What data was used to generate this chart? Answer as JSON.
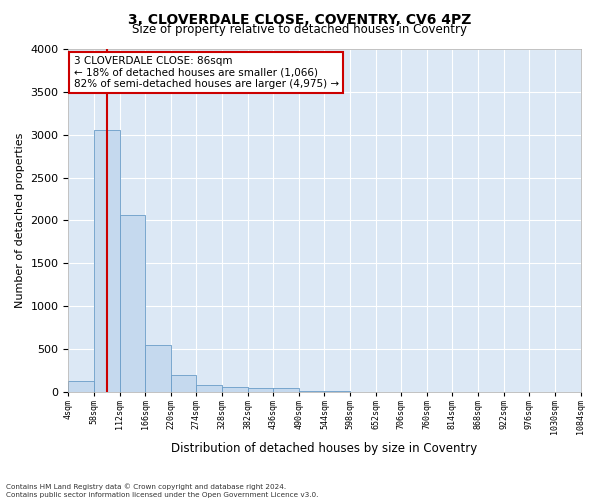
{
  "title": "3, CLOVERDALE CLOSE, COVENTRY, CV6 4PZ",
  "subtitle": "Size of property relative to detached houses in Coventry",
  "xlabel": "Distribution of detached houses by size in Coventry",
  "ylabel": "Number of detached properties",
  "property_size": 86,
  "annotation_lines": [
    "3 CLOVERDALE CLOSE: 86sqm",
    "← 18% of detached houses are smaller (1,066)",
    "82% of semi-detached houses are larger (4,975) →"
  ],
  "bin_edges": [
    4,
    58,
    112,
    166,
    220,
    274,
    328,
    382,
    436,
    490,
    544,
    598,
    652,
    706,
    760,
    814,
    868,
    922,
    976,
    1030,
    1084
  ],
  "bin_counts": [
    120,
    3050,
    2060,
    550,
    200,
    75,
    50,
    45,
    40,
    5,
    3,
    2,
    1,
    1,
    0,
    0,
    0,
    0,
    0,
    0
  ],
  "bar_color": "#c5d9ee",
  "bar_edge_color": "#6a9dc8",
  "vline_color": "#cc0000",
  "annotation_box_edgecolor": "#cc0000",
  "annotation_box_facecolor": "#ffffff",
  "axes_facecolor": "#dce8f5",
  "fig_facecolor": "#ffffff",
  "grid_color": "#ffffff",
  "ylim": [
    0,
    4000
  ],
  "xlim": [
    4,
    1084
  ],
  "yticks": [
    0,
    500,
    1000,
    1500,
    2000,
    2500,
    3000,
    3500,
    4000
  ],
  "footer_line1": "Contains HM Land Registry data © Crown copyright and database right 2024.",
  "footer_line2": "Contains public sector information licensed under the Open Government Licence v3.0."
}
